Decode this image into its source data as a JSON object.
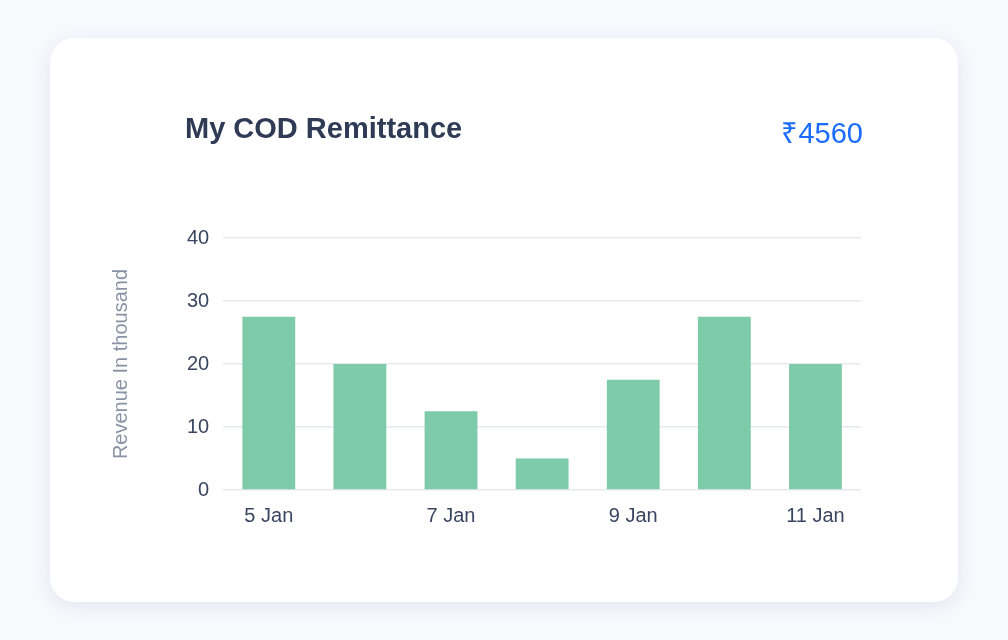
{
  "chart_data": {
    "type": "bar",
    "title": "My COD Remittance",
    "annotations": [
      "₹4560"
    ],
    "ylabel": "Revenue In thousand",
    "categories": [
      "5 Jan",
      null,
      "7 Jan",
      null,
      "9 Jan",
      null,
      "11 Jan"
    ],
    "values": [
      27.5,
      20,
      12.5,
      5,
      17.5,
      27.5,
      20
    ],
    "color": "#7ecba9",
    "ylim": [
      0,
      40
    ],
    "yticks": [
      0,
      10,
      20,
      30,
      40
    ],
    "grid": "y"
  }
}
